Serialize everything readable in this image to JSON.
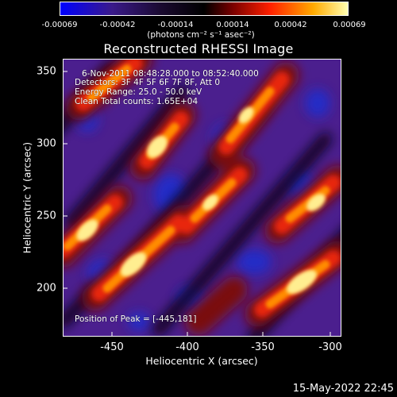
{
  "colorbar": {
    "tick_labels": [
      "-0.00069",
      "-0.00042",
      "-0.00014",
      "0.00014",
      "0.00042",
      "0.00069"
    ],
    "unit": "(photons cm⁻² s⁻¹ asec⁻²)",
    "colors": [
      "#0000ff",
      "#3a1a8a",
      "#000000",
      "#7a0000",
      "#ff2000",
      "#ffaa00",
      "#ffffb0"
    ]
  },
  "title": "Reconstructed RHESSI Image",
  "info": {
    "line1": "6-Nov-2011 08:48:28.000 to 08:52:40.000",
    "line2": "Detectors: 3F 4F 5F 6F 7F 8F, Att 0",
    "line3": "Energy Range: 25.0 - 50.0 keV",
    "line4": "Clean     Total counts: 1.65E+04"
  },
  "position_text": "Position of Peak = [-445,181]",
  "axes": {
    "xlabel": "Heliocentric X (arcsec)",
    "ylabel": "Heliocentric Y (arcsec)",
    "xticks": [
      "-450",
      "-400",
      "-350",
      "-300"
    ],
    "yticks": [
      "350",
      "300",
      "250",
      "200"
    ]
  },
  "datestamp": "15-May-2022 22:45"
}
